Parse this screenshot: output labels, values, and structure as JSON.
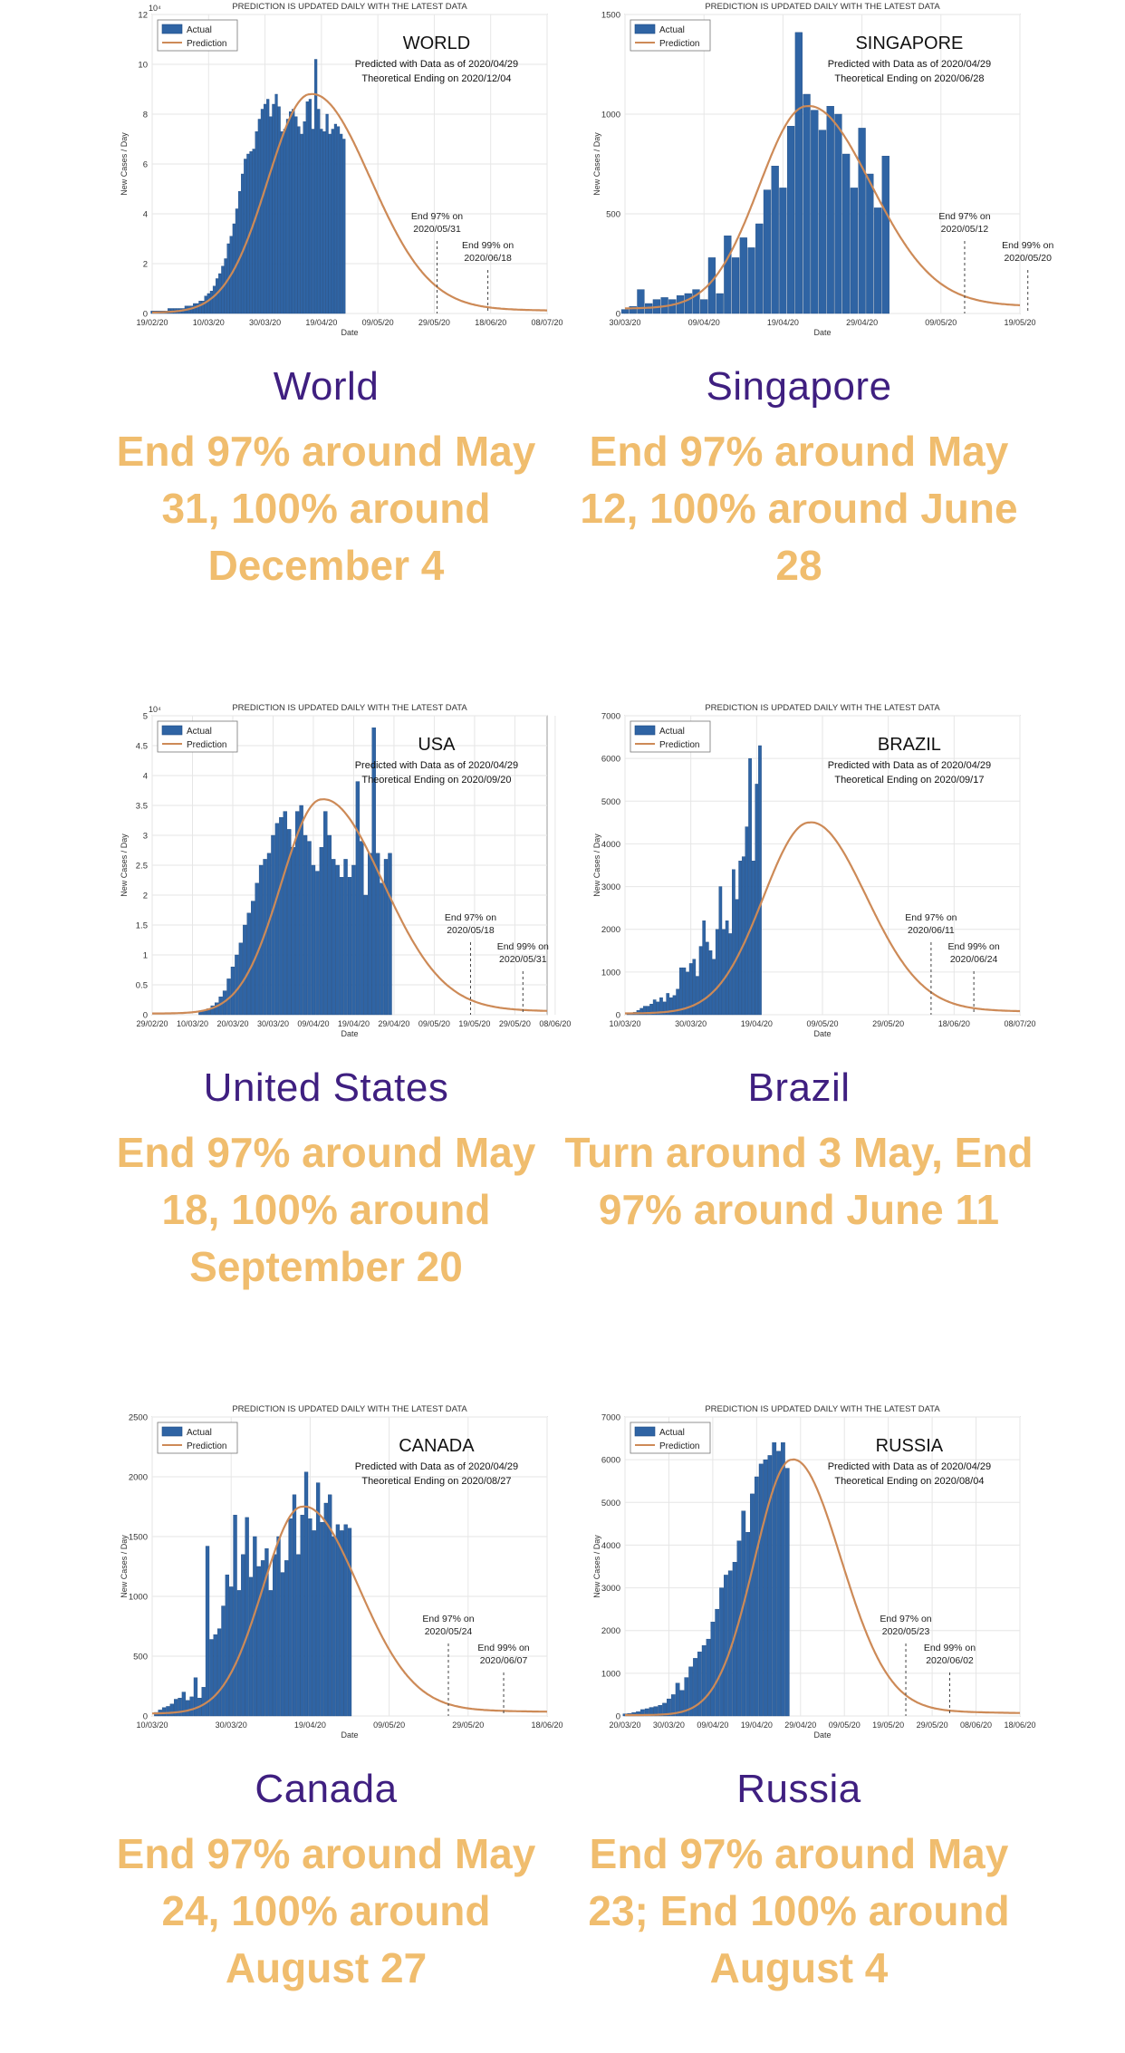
{
  "header_text": "PREDICTION IS UPDATED DAILY WITH THE LATEST DATA",
  "legend": {
    "actual": "Actual",
    "prediction": "Prediction"
  },
  "ylabel": "New Cases / Day",
  "xlabel": "Date",
  "colors": {
    "bars": "#2f64a4",
    "curve": "#cd8a57",
    "country": "#3f1f80",
    "summary": "#f0bd6e"
  },
  "panels": [
    {
      "id": "world",
      "country": "World",
      "summary": "End 97% around May 31, 100% around December 4",
      "chart_data": {
        "type": "bar",
        "title": "WORLD",
        "line1": "Predicted with Data as of 2020/04/29",
        "line2": "Theoretical Ending on 2020/12/04",
        "end97": "End 97% on",
        "end97_date": "2020/05/31",
        "end99": "End 99% on",
        "end99_date": "2020/06/18",
        "y_exponent": "10⁴",
        "xlim": [
          0,
          140
        ],
        "ylim": [
          0,
          12
        ],
        "yticks": [
          0,
          2,
          4,
          6,
          8,
          10,
          12
        ],
        "xticks": [
          {
            "x": 0,
            "label": "19/02/20"
          },
          {
            "x": 20,
            "label": "10/03/20"
          },
          {
            "x": 40,
            "label": "30/03/20"
          },
          {
            "x": 60,
            "label": "19/04/20"
          },
          {
            "x": 80,
            "label": "09/05/20"
          },
          {
            "x": 100,
            "label": "29/05/20"
          },
          {
            "x": 120,
            "label": "18/06/20"
          },
          {
            "x": 140,
            "label": "08/07/20"
          }
        ],
        "end97_x": 101,
        "end99_x": 119,
        "bar_start": 0,
        "values": [
          0.1,
          0.1,
          0.1,
          0.1,
          0.1,
          0.1,
          0.2,
          0.2,
          0.2,
          0.2,
          0.2,
          0.2,
          0.3,
          0.3,
          0.3,
          0.4,
          0.4,
          0.5,
          0.5,
          0.7,
          0.8,
          0.9,
          1.1,
          1.4,
          1.6,
          1.9,
          2.2,
          2.8,
          3.1,
          3.6,
          4.2,
          4.9,
          5.6,
          6.2,
          6.4,
          6.5,
          6.6,
          7.3,
          7.8,
          8.2,
          8.4,
          8.6,
          7.9,
          8.4,
          8.8,
          8.3,
          7.3,
          7.4,
          7.8,
          8.1,
          8.2,
          7.9,
          7.5,
          7.2,
          7.7,
          8.5,
          8.6,
          7.4,
          10.2,
          8.2,
          7.4,
          7.3,
          8.0,
          7.2,
          7.4,
          7.6,
          7.5,
          7.2,
          7.0
        ],
        "curve": {
          "peak": 8.8,
          "peak_x": 56,
          "sigma_left": 15,
          "sigma_right": 21,
          "baseline": 0.03
        }
      }
    },
    {
      "id": "singapore",
      "country": "Singapore",
      "summary": "End 97% around May 12, 100% around June 28",
      "chart_data": {
        "type": "bar",
        "title": "SINGAPORE",
        "line1": "Predicted with Data as of 2020/04/29",
        "line2": "Theoretical Ending on 2020/06/28",
        "end97": "End 97% on",
        "end97_date": "2020/05/12",
        "end99": "End 99% on",
        "end99_date": "2020/05/20",
        "y_exponent": "",
        "xlim": [
          0,
          50
        ],
        "ylim": [
          0,
          1500
        ],
        "yticks": [
          0,
          500,
          1000,
          1500
        ],
        "xticks": [
          {
            "x": 0,
            "label": "30/03/20"
          },
          {
            "x": 10,
            "label": "09/04/20"
          },
          {
            "x": 20,
            "label": "19/04/20"
          },
          {
            "x": 30,
            "label": "29/04/20"
          },
          {
            "x": 40,
            "label": "09/05/20"
          },
          {
            "x": 50,
            "label": "19/05/20"
          }
        ],
        "end97_x": 43,
        "end99_x": 51,
        "bar_start": 0,
        "values": [
          20,
          35,
          120,
          50,
          70,
          80,
          70,
          90,
          100,
          120,
          70,
          280,
          100,
          390,
          280,
          380,
          330,
          450,
          620,
          740,
          630,
          940,
          1410,
          1100,
          1020,
          920,
          1040,
          1000,
          800,
          630,
          930,
          700,
          530,
          790
        ],
        "curve": {
          "peak": 1040,
          "peak_x": 23,
          "sigma_left": 6,
          "sigma_right": 8,
          "baseline": 25
        }
      }
    },
    {
      "id": "usa",
      "country": "United States",
      "summary": "End 97% around May 18, 100% around September 20",
      "chart_data": {
        "type": "bar",
        "title": "USA",
        "line1": "Predicted with Data as of 2020/04/29",
        "line2": "Theoretical Ending on 2020/09/20",
        "end97": "End 97% on",
        "end97_date": "2020/05/18",
        "end99": "End 99% on",
        "end99_date": "2020/05/31",
        "y_exponent": "10⁴",
        "xlim": [
          0,
          98
        ],
        "ylim": [
          0,
          5
        ],
        "yticks": [
          0,
          0.5,
          1,
          1.5,
          2,
          2.5,
          3,
          3.5,
          4,
          4.5,
          5
        ],
        "xticks": [
          {
            "x": 0,
            "label": "29/02/20"
          },
          {
            "x": 10,
            "label": "10/03/20"
          },
          {
            "x": 20,
            "label": "20/03/20"
          },
          {
            "x": 30,
            "label": "30/03/20"
          },
          {
            "x": 40,
            "label": "09/04/20"
          },
          {
            "x": 50,
            "label": "19/04/20"
          },
          {
            "x": 60,
            "label": "29/04/20"
          },
          {
            "x": 70,
            "label": "09/05/20"
          },
          {
            "x": 80,
            "label": "19/05/20"
          },
          {
            "x": 90,
            "label": "29/05/20"
          },
          {
            "x": 100,
            "label": "08/06/20"
          }
        ],
        "end97_x": 79,
        "end99_x": 92,
        "bar_start": 12,
        "values": [
          0.05,
          0.07,
          0.1,
          0.15,
          0.2,
          0.3,
          0.4,
          0.6,
          0.8,
          1.0,
          1.2,
          1.5,
          1.7,
          1.9,
          2.2,
          2.5,
          2.6,
          2.7,
          3.0,
          3.2,
          3.3,
          3.4,
          3.1,
          2.8,
          3.4,
          3.5,
          3.0,
          2.9,
          2.5,
          2.4,
          2.8,
          3.4,
          3.0,
          2.6,
          2.5,
          2.3,
          2.6,
          2.3,
          2.5,
          3.9,
          2.9,
          2.0,
          2.7,
          4.8,
          2.7,
          2.2,
          2.6,
          2.7
        ],
        "curve": {
          "peak": 3.6,
          "peak_x": 42,
          "sigma_left": 10,
          "sigma_right": 15,
          "baseline": 0.02
        }
      }
    },
    {
      "id": "brazil",
      "country": "Brazil",
      "summary": "Turn around 3 May, End 97% around June 11",
      "chart_data": {
        "type": "bar",
        "title": "BRAZIL",
        "line1": "Predicted with Data as of 2020/04/29",
        "line2": "Theoretical Ending on 2020/09/17",
        "end97": "End 97% on",
        "end97_date": "2020/06/11",
        "end99": "End 99% on",
        "end99_date": "2020/06/24",
        "y_exponent": "",
        "xlim": [
          0,
          120
        ],
        "ylim": [
          0,
          7000
        ],
        "yticks": [
          0,
          1000,
          2000,
          3000,
          4000,
          5000,
          6000,
          7000
        ],
        "xticks": [
          {
            "x": 0,
            "label": "10/03/20"
          },
          {
            "x": 20,
            "label": "30/03/20"
          },
          {
            "x": 40,
            "label": "19/04/20"
          },
          {
            "x": 60,
            "label": "09/05/20"
          },
          {
            "x": 80,
            "label": "29/05/20"
          },
          {
            "x": 100,
            "label": "18/06/20"
          },
          {
            "x": 120,
            "label": "08/07/20"
          }
        ],
        "end97_x": 93,
        "end99_x": 106,
        "bar_start": 1,
        "values": [
          10,
          30,
          60,
          100,
          150,
          200,
          200,
          250,
          350,
          300,
          400,
          300,
          500,
          400,
          450,
          600,
          1100,
          1100,
          1000,
          1200,
          1300,
          900,
          1600,
          2200,
          1700,
          1500,
          1300,
          2000,
          3000,
          2000,
          2200,
          1900,
          3400,
          2700,
          3600,
          3700,
          4400,
          6000,
          3600,
          5400,
          6300
        ],
        "curve": {
          "peak": 4500,
          "peak_x": 56,
          "sigma_left": 14,
          "sigma_right": 17,
          "baseline": 30
        }
      }
    },
    {
      "id": "canada",
      "country": "Canada",
      "summary": "End 97% around May 24, 100% around August 27",
      "chart_data": {
        "type": "bar",
        "title": "CANADA",
        "line1": "Predicted with Data as of 2020/04/29",
        "line2": "Theoretical Ending on 2020/08/27",
        "end97": "End 97% on",
        "end97_date": "2020/05/24",
        "end99": "End 99% on",
        "end99_date": "2020/06/07",
        "y_exponent": "",
        "xlim": [
          0,
          100
        ],
        "ylim": [
          0,
          2500
        ],
        "yticks": [
          0,
          500,
          1000,
          1500,
          2000,
          2500
        ],
        "xticks": [
          {
            "x": 0,
            "label": "10/03/20"
          },
          {
            "x": 20,
            "label": "30/03/20"
          },
          {
            "x": 40,
            "label": "19/04/20"
          },
          {
            "x": 60,
            "label": "09/05/20"
          },
          {
            "x": 80,
            "label": "29/05/20"
          },
          {
            "x": 100,
            "label": "18/06/20"
          }
        ],
        "end97_x": 75,
        "end99_x": 89,
        "bar_start": 1,
        "values": [
          30,
          50,
          70,
          80,
          100,
          140,
          150,
          200,
          130,
          160,
          320,
          150,
          240,
          1420,
          640,
          680,
          730,
          920,
          1180,
          1080,
          1680,
          1050,
          1350,
          1660,
          1160,
          1500,
          1250,
          1300,
          1400,
          1050,
          1350,
          1500,
          1200,
          1300,
          1650,
          1850,
          1350,
          1680,
          2040,
          1650,
          1550,
          1950,
          1620,
          1780,
          1850,
          1500,
          1600,
          1550,
          1600,
          1570
        ],
        "curve": {
          "peak": 1750,
          "peak_x": 38,
          "sigma_left": 10,
          "sigma_right": 14,
          "baseline": 20
        }
      }
    },
    {
      "id": "russia",
      "country": "Russia",
      "summary": "End 97% around May 23; End 100% around August 4",
      "chart_data": {
        "type": "bar",
        "title": "RUSSIA",
        "line1": "Predicted with Data as of 2020/04/29",
        "line2": "Theoretical Ending on 2020/08/04",
        "end97": "End 97% on",
        "end97_date": "2020/05/23",
        "end99": "End 99% on",
        "end99_date": "2020/06/02",
        "y_exponent": "",
        "xlim": [
          0,
          90
        ],
        "ylim": [
          0,
          7000
        ],
        "yticks": [
          0,
          1000,
          2000,
          3000,
          4000,
          5000,
          6000,
          7000
        ],
        "xticks": [
          {
            "x": 0,
            "label": "20/03/20"
          },
          {
            "x": 10,
            "label": "30/03/20"
          },
          {
            "x": 20,
            "label": "09/04/20"
          },
          {
            "x": 30,
            "label": "19/04/20"
          },
          {
            "x": 40,
            "label": "29/04/20"
          },
          {
            "x": 50,
            "label": "09/05/20"
          },
          {
            "x": 60,
            "label": "19/05/20"
          },
          {
            "x": 70,
            "label": "29/05/20"
          },
          {
            "x": 80,
            "label": "08/06/20"
          },
          {
            "x": 90,
            "label": "18/06/20"
          }
        ],
        "end97_x": 64,
        "end99_x": 74,
        "bar_start": 0,
        "values": [
          50,
          60,
          80,
          100,
          150,
          170,
          200,
          220,
          250,
          300,
          400,
          500,
          770,
          600,
          900,
          1150,
          1350,
          1500,
          1650,
          1800,
          2200,
          2500,
          3000,
          3300,
          3400,
          3600,
          4100,
          4800,
          4300,
          5200,
          5600,
          5900,
          6000,
          6100,
          6400,
          6200,
          6400,
          5800
        ],
        "curve": {
          "peak": 6000,
          "peak_x": 38,
          "sigma_left": 8.5,
          "sigma_right": 11,
          "baseline": 20
        }
      }
    }
  ]
}
